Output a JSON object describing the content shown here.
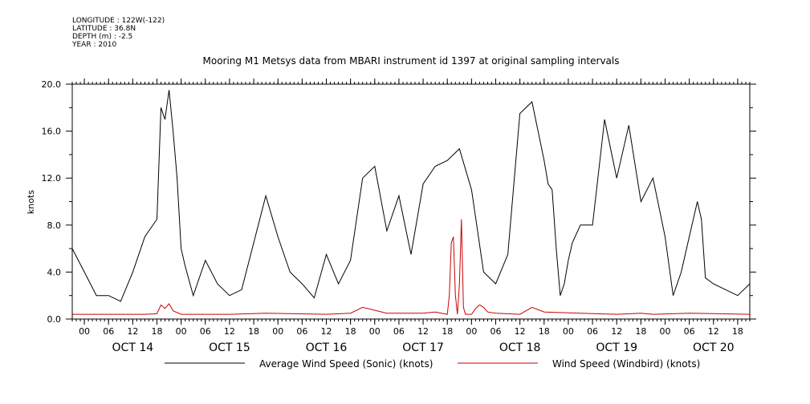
{
  "meta": {
    "longitude": "LONGITUDE : 122W(-122)",
    "latitude": "LATITUDE : 36.8N",
    "depth": "DEPTH (m) : -2.5",
    "year": "YEAR : 2010"
  },
  "chart_data": {
    "type": "line",
    "title": "Mooring M1 Metsys data from MBARI instrument id 1397 at original sampling intervals",
    "xlabel": "",
    "ylabel": "knots",
    "ylim": [
      0,
      20
    ],
    "xlim_hours": [
      -3,
      165
    ],
    "y_ticks": [
      "0.0",
      "4.0",
      "8.0",
      "12.0",
      "16.0",
      "20.0"
    ],
    "y_tick_values": [
      0,
      4,
      8,
      12,
      16,
      20
    ],
    "x_hour_ticks": [
      "00",
      "06",
      "12",
      "18",
      "00",
      "06",
      "12",
      "18",
      "00",
      "06",
      "12",
      "18",
      "00",
      "06",
      "12",
      "18",
      "00",
      "06",
      "12",
      "18",
      "00",
      "06",
      "12",
      "18",
      "00",
      "06",
      "12",
      "18"
    ],
    "day_labels": [
      "OCT 14",
      "OCT 15",
      "OCT 16",
      "OCT 17",
      "OCT 18",
      "OCT 19",
      "OCT 20"
    ],
    "series": [
      {
        "name": "Average Wind Speed (Sonic) (knots)",
        "color": "#000000",
        "x": [
          -3,
          0,
          3,
          6,
          9,
          12,
          15,
          18,
          19,
          20,
          21,
          22,
          23,
          24,
          25,
          27,
          30,
          33,
          36,
          39,
          42,
          45,
          48,
          51,
          54,
          57,
          60,
          63,
          66,
          69,
          72,
          75,
          78,
          81,
          84,
          87,
          90,
          93,
          96,
          99,
          102,
          105,
          108,
          111,
          114,
          115,
          116,
          117,
          118,
          119,
          120,
          121,
          123,
          126,
          129,
          132,
          135,
          138,
          141,
          144,
          146,
          148,
          150,
          152,
          153,
          154,
          156,
          159,
          162,
          165
        ],
        "y": [
          6.0,
          4.0,
          2.0,
          2.0,
          1.5,
          4.0,
          7.0,
          8.5,
          18.0,
          17.0,
          19.5,
          16.0,
          12.0,
          6.0,
          4.5,
          2.0,
          5.0,
          3.0,
          2.0,
          2.5,
          6.5,
          10.5,
          7.0,
          4.0,
          3.0,
          1.8,
          5.5,
          3.0,
          5.0,
          12.0,
          13.0,
          7.5,
          10.5,
          5.5,
          11.5,
          13.0,
          13.5,
          14.5,
          11.0,
          4.0,
          3.0,
          5.5,
          17.5,
          18.5,
          13.5,
          11.5,
          11.0,
          6.0,
          2.0,
          3.0,
          5.0,
          6.5,
          8.0,
          8.0,
          17.0,
          12.0,
          16.5,
          10.0,
          12.0,
          7.0,
          2.0,
          4.0,
          7.0,
          10.0,
          8.5,
          3.5,
          3.0,
          2.5,
          2.0,
          3.0
        ]
      },
      {
        "name": "Wind Speed (Windbird) (knots)",
        "color": "#cc0000",
        "x": [
          -3,
          15,
          18,
          19,
          20,
          21,
          22,
          24,
          36,
          45,
          60,
          66,
          69,
          75,
          84,
          87,
          90,
          90.5,
          91,
          91.5,
          92,
          92.5,
          93,
          93.5,
          94,
          94.5,
          96,
          97,
          98,
          99,
          100,
          102,
          108,
          111,
          114,
          123,
          132,
          138,
          141,
          150,
          165
        ],
        "y": [
          0.4,
          0.4,
          0.45,
          1.2,
          0.9,
          1.3,
          0.7,
          0.4,
          0.4,
          0.5,
          0.4,
          0.5,
          1.0,
          0.5,
          0.5,
          0.6,
          0.4,
          2.0,
          6.5,
          7.0,
          2.0,
          0.4,
          3.0,
          8.5,
          1.0,
          0.4,
          0.4,
          0.9,
          1.2,
          1.0,
          0.6,
          0.5,
          0.4,
          1.0,
          0.6,
          0.5,
          0.4,
          0.5,
          0.4,
          0.5,
          0.4
        ]
      }
    ]
  }
}
